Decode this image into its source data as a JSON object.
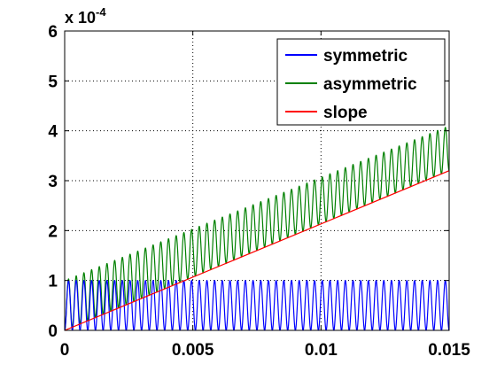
{
  "chart_data": {
    "type": "line",
    "title": "",
    "xlabel": "",
    "ylabel": "",
    "xlim": [
      0,
      0.015
    ],
    "ylim": [
      0,
      6
    ],
    "y_exponent": {
      "prefix": "x 10",
      "power": "-4"
    },
    "x_ticks": [
      0,
      0.005,
      0.01,
      0.015
    ],
    "x_tick_labels": [
      "0",
      "0.005",
      "0.01",
      "0.015"
    ],
    "y_ticks": [
      0,
      1,
      2,
      3,
      4,
      5,
      6
    ],
    "y_tick_labels": [
      "0",
      "1",
      "2",
      "3",
      "4",
      "5",
      "6"
    ],
    "grid": true,
    "legend_position": "top-right",
    "series": [
      {
        "name": "symmetric",
        "color": "#0000ff",
        "form": "oscillation between 0 and 1.0 (x 10^-4), period 0.0003",
        "min": 0,
        "max": 1.0,
        "period": 0.0003
      },
      {
        "name": "asymmetric",
        "color": "#008000",
        "form": "oscillation of amplitude 1.0 (x 10^-4) riding on a linear rise, period 0.0003",
        "min_start": 0,
        "max_start": 1.0,
        "min_end": 3.2,
        "max_end": 4.1,
        "period": 0.0003
      },
      {
        "name": "slope",
        "color": "#ff0000",
        "x": [
          0,
          0.015
        ],
        "y": [
          0,
          3.2
        ]
      }
    ]
  }
}
